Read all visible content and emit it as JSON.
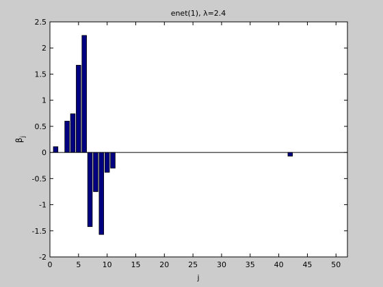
{
  "chart_data": {
    "type": "bar",
    "title": "enet(1), λ=2.4",
    "xlabel": "j",
    "ylabel_base": "β",
    "ylabel_sub": "j",
    "xlim": [
      0,
      52
    ],
    "ylim": [
      -2,
      2.5
    ],
    "xticks": [
      0,
      5,
      10,
      15,
      20,
      25,
      30,
      35,
      40,
      45,
      50
    ],
    "yticks": [
      -2,
      -1.5,
      -1,
      -0.5,
      0,
      0.5,
      1,
      1.5,
      2,
      2.5
    ],
    "ytick_labels": [
      "-2",
      "-1.5",
      "-1",
      "-0.5",
      "0",
      "0.5",
      "1",
      "1.5",
      "2",
      "2.5"
    ],
    "grid": false,
    "bar_color": "#000080",
    "bar_edge_color": "#000000",
    "x": [
      1,
      2,
      3,
      4,
      5,
      6,
      7,
      8,
      9,
      10,
      11,
      12,
      13,
      14,
      15,
      16,
      17,
      18,
      19,
      20,
      21,
      22,
      23,
      24,
      25,
      26,
      27,
      28,
      29,
      30,
      31,
      32,
      33,
      34,
      35,
      36,
      37,
      38,
      39,
      40,
      41,
      42,
      43,
      44,
      45,
      46,
      47,
      48,
      49,
      50
    ],
    "values": [
      0.11,
      0,
      0.6,
      0.74,
      1.67,
      2.24,
      -1.42,
      -0.75,
      -1.57,
      -0.38,
      -0.3,
      0,
      0,
      0,
      0,
      0,
      0,
      0,
      0,
      0,
      0,
      0,
      0,
      0,
      0,
      0,
      0,
      0,
      0,
      0,
      0,
      0,
      0,
      0,
      0,
      0,
      0,
      0,
      0,
      0,
      0,
      -0.07,
      0,
      0,
      0,
      0,
      0,
      0,
      0,
      0
    ]
  }
}
